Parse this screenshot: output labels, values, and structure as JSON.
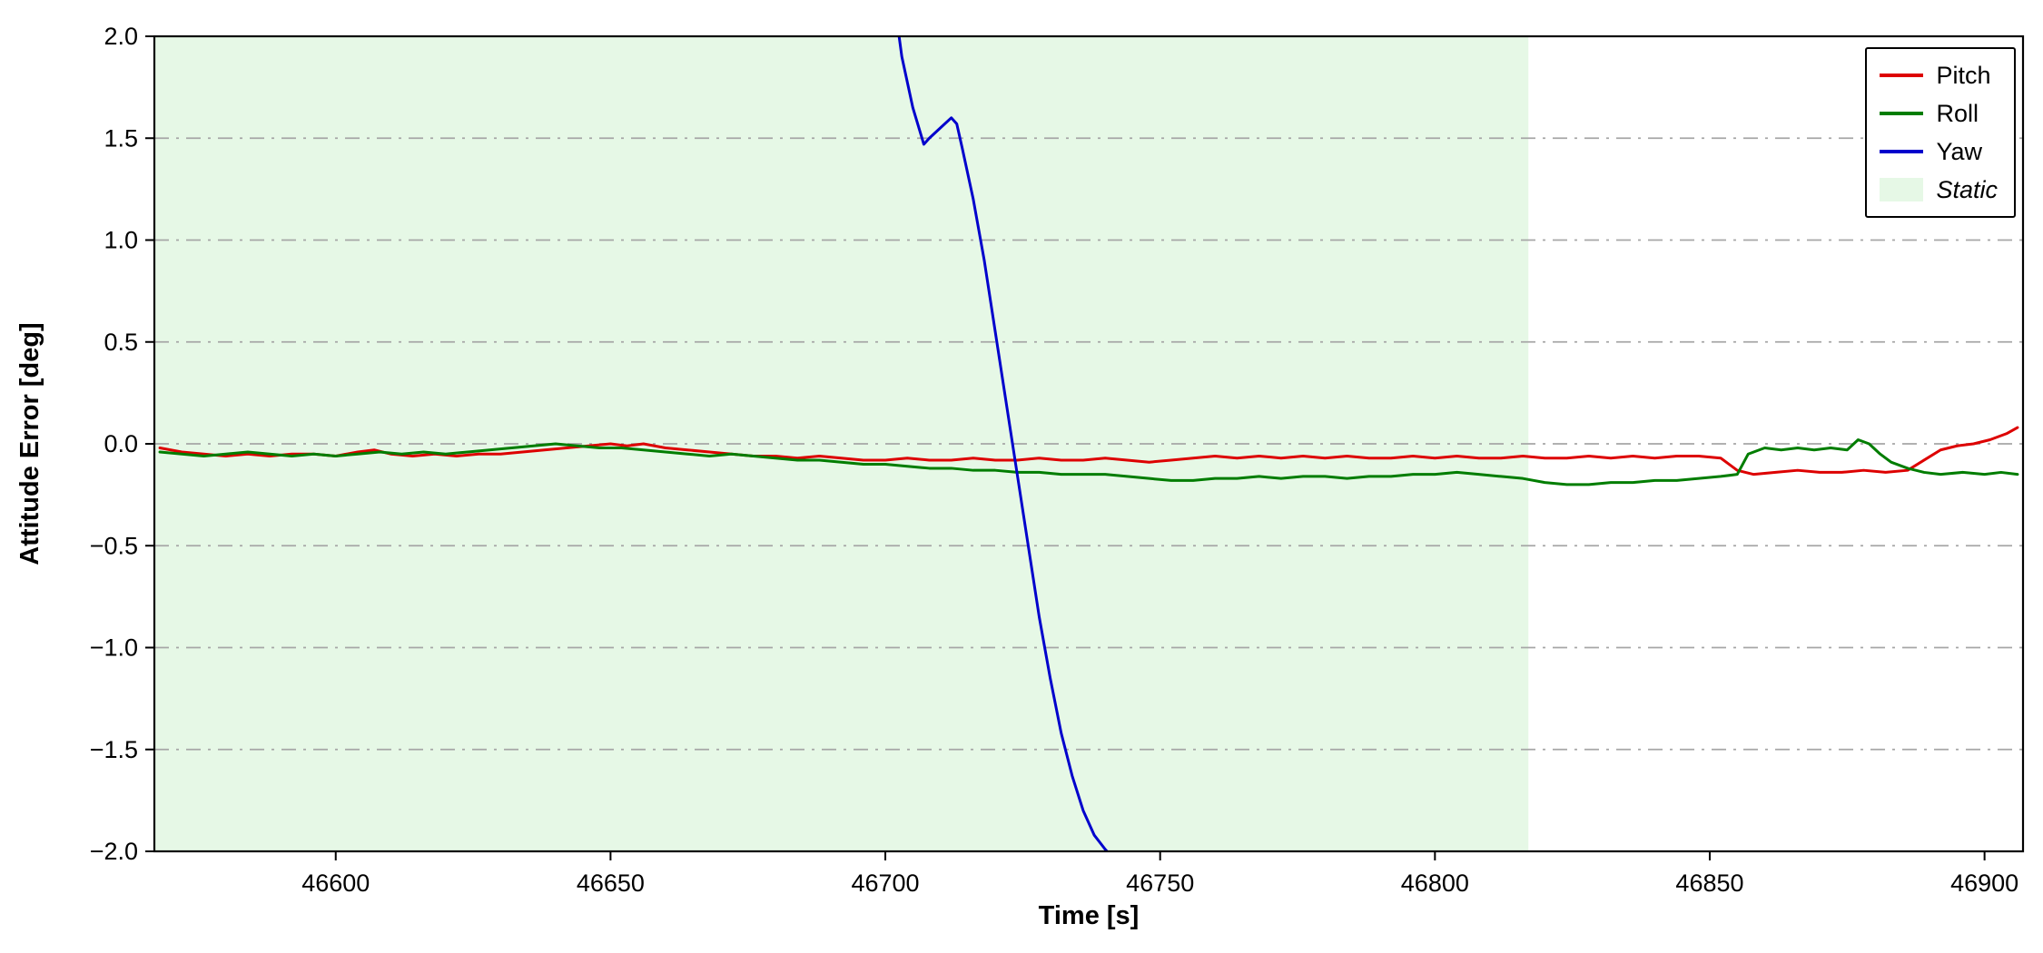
{
  "chart_data": {
    "type": "line",
    "title": "",
    "xlabel": "Time [s]",
    "ylabel": "Attitude Error [deg]",
    "xlim": [
      46567,
      46907
    ],
    "ylim": [
      -2.0,
      2.0
    ],
    "xticks": [
      46600,
      46650,
      46700,
      46750,
      46800,
      46850,
      46900
    ],
    "yticks": [
      -2.0,
      -1.5,
      -1.0,
      -0.5,
      0.0,
      0.5,
      1.0,
      1.5,
      2.0
    ],
    "grid": "horizontal dash-dot",
    "grid_color": "#a6a6a6",
    "static_region": {
      "label": "Static",
      "x_start": 46567,
      "x_end": 46817,
      "color": "#e6f8e6"
    },
    "legend": {
      "position": "upper right",
      "items": [
        {
          "label": "Pitch",
          "type": "line",
          "color": "#dd0000",
          "italic": false
        },
        {
          "label": "Roll",
          "type": "line",
          "color": "#007d00",
          "italic": false
        },
        {
          "label": "Yaw",
          "type": "line",
          "color": "#0000cc",
          "italic": false
        },
        {
          "label": "Static",
          "type": "patch",
          "color": "#e6f8e6",
          "italic": true
        }
      ]
    },
    "series": [
      {
        "name": "Pitch",
        "color": "#dd0000",
        "points": [
          [
            46568,
            -0.02
          ],
          [
            46572,
            -0.04
          ],
          [
            46576,
            -0.05
          ],
          [
            46580,
            -0.06
          ],
          [
            46584,
            -0.05
          ],
          [
            46588,
            -0.06
          ],
          [
            46592,
            -0.05
          ],
          [
            46596,
            -0.05
          ],
          [
            46600,
            -0.06
          ],
          [
            46604,
            -0.04
          ],
          [
            46607,
            -0.03
          ],
          [
            46610,
            -0.05
          ],
          [
            46614,
            -0.06
          ],
          [
            46618,
            -0.05
          ],
          [
            46622,
            -0.06
          ],
          [
            46626,
            -0.05
          ],
          [
            46630,
            -0.05
          ],
          [
            46634,
            -0.04
          ],
          [
            46638,
            -0.03
          ],
          [
            46642,
            -0.02
          ],
          [
            46646,
            -0.01
          ],
          [
            46650,
            0.0
          ],
          [
            46653,
            -0.01
          ],
          [
            46656,
            0.0
          ],
          [
            46660,
            -0.02
          ],
          [
            46664,
            -0.03
          ],
          [
            46668,
            -0.04
          ],
          [
            46672,
            -0.05
          ],
          [
            46676,
            -0.06
          ],
          [
            46680,
            -0.06
          ],
          [
            46684,
            -0.07
          ],
          [
            46688,
            -0.06
          ],
          [
            46692,
            -0.07
          ],
          [
            46696,
            -0.08
          ],
          [
            46700,
            -0.08
          ],
          [
            46704,
            -0.07
          ],
          [
            46708,
            -0.08
          ],
          [
            46712,
            -0.08
          ],
          [
            46716,
            -0.07
          ],
          [
            46720,
            -0.08
          ],
          [
            46724,
            -0.08
          ],
          [
            46728,
            -0.07
          ],
          [
            46732,
            -0.08
          ],
          [
            46736,
            -0.08
          ],
          [
            46740,
            -0.07
          ],
          [
            46744,
            -0.08
          ],
          [
            46748,
            -0.09
          ],
          [
            46752,
            -0.08
          ],
          [
            46756,
            -0.07
          ],
          [
            46760,
            -0.06
          ],
          [
            46764,
            -0.07
          ],
          [
            46768,
            -0.06
          ],
          [
            46772,
            -0.07
          ],
          [
            46776,
            -0.06
          ],
          [
            46780,
            -0.07
          ],
          [
            46784,
            -0.06
          ],
          [
            46788,
            -0.07
          ],
          [
            46792,
            -0.07
          ],
          [
            46796,
            -0.06
          ],
          [
            46800,
            -0.07
          ],
          [
            46804,
            -0.06
          ],
          [
            46808,
            -0.07
          ],
          [
            46812,
            -0.07
          ],
          [
            46816,
            -0.06
          ],
          [
            46820,
            -0.07
          ],
          [
            46824,
            -0.07
          ],
          [
            46828,
            -0.06
          ],
          [
            46832,
            -0.07
          ],
          [
            46836,
            -0.06
          ],
          [
            46840,
            -0.07
          ],
          [
            46844,
            -0.06
          ],
          [
            46848,
            -0.06
          ],
          [
            46852,
            -0.07
          ],
          [
            46855,
            -0.13
          ],
          [
            46858,
            -0.15
          ],
          [
            46862,
            -0.14
          ],
          [
            46866,
            -0.13
          ],
          [
            46870,
            -0.14
          ],
          [
            46874,
            -0.14
          ],
          [
            46878,
            -0.13
          ],
          [
            46882,
            -0.14
          ],
          [
            46886,
            -0.13
          ],
          [
            46889,
            -0.08
          ],
          [
            46892,
            -0.03
          ],
          [
            46895,
            -0.01
          ],
          [
            46898,
            0.0
          ],
          [
            46901,
            0.02
          ],
          [
            46904,
            0.05
          ],
          [
            46906,
            0.08
          ]
        ]
      },
      {
        "name": "Roll",
        "color": "#007d00",
        "points": [
          [
            46568,
            -0.04
          ],
          [
            46572,
            -0.05
          ],
          [
            46576,
            -0.06
          ],
          [
            46580,
            -0.05
          ],
          [
            46584,
            -0.04
          ],
          [
            46588,
            -0.05
          ],
          [
            46592,
            -0.06
          ],
          [
            46596,
            -0.05
          ],
          [
            46600,
            -0.06
          ],
          [
            46604,
            -0.05
          ],
          [
            46608,
            -0.04
          ],
          [
            46612,
            -0.05
          ],
          [
            46616,
            -0.04
          ],
          [
            46620,
            -0.05
          ],
          [
            46624,
            -0.04
          ],
          [
            46628,
            -0.03
          ],
          [
            46632,
            -0.02
          ],
          [
            46636,
            -0.01
          ],
          [
            46640,
            0.0
          ],
          [
            46644,
            -0.01
          ],
          [
            46648,
            -0.02
          ],
          [
            46652,
            -0.02
          ],
          [
            46656,
            -0.03
          ],
          [
            46660,
            -0.04
          ],
          [
            46664,
            -0.05
          ],
          [
            46668,
            -0.06
          ],
          [
            46672,
            -0.05
          ],
          [
            46676,
            -0.06
          ],
          [
            46680,
            -0.07
          ],
          [
            46684,
            -0.08
          ],
          [
            46688,
            -0.08
          ],
          [
            46692,
            -0.09
          ],
          [
            46696,
            -0.1
          ],
          [
            46700,
            -0.1
          ],
          [
            46704,
            -0.11
          ],
          [
            46708,
            -0.12
          ],
          [
            46712,
            -0.12
          ],
          [
            46716,
            -0.13
          ],
          [
            46720,
            -0.13
          ],
          [
            46724,
            -0.14
          ],
          [
            46728,
            -0.14
          ],
          [
            46732,
            -0.15
          ],
          [
            46736,
            -0.15
          ],
          [
            46740,
            -0.15
          ],
          [
            46744,
            -0.16
          ],
          [
            46748,
            -0.17
          ],
          [
            46752,
            -0.18
          ],
          [
            46756,
            -0.18
          ],
          [
            46760,
            -0.17
          ],
          [
            46764,
            -0.17
          ],
          [
            46768,
            -0.16
          ],
          [
            46772,
            -0.17
          ],
          [
            46776,
            -0.16
          ],
          [
            46780,
            -0.16
          ],
          [
            46784,
            -0.17
          ],
          [
            46788,
            -0.16
          ],
          [
            46792,
            -0.16
          ],
          [
            46796,
            -0.15
          ],
          [
            46800,
            -0.15
          ],
          [
            46804,
            -0.14
          ],
          [
            46808,
            -0.15
          ],
          [
            46812,
            -0.16
          ],
          [
            46816,
            -0.17
          ],
          [
            46820,
            -0.19
          ],
          [
            46824,
            -0.2
          ],
          [
            46828,
            -0.2
          ],
          [
            46832,
            -0.19
          ],
          [
            46836,
            -0.19
          ],
          [
            46840,
            -0.18
          ],
          [
            46844,
            -0.18
          ],
          [
            46848,
            -0.17
          ],
          [
            46852,
            -0.16
          ],
          [
            46855,
            -0.15
          ],
          [
            46857,
            -0.05
          ],
          [
            46860,
            -0.02
          ],
          [
            46863,
            -0.03
          ],
          [
            46866,
            -0.02
          ],
          [
            46869,
            -0.03
          ],
          [
            46872,
            -0.02
          ],
          [
            46875,
            -0.03
          ],
          [
            46877,
            0.02
          ],
          [
            46879,
            0.0
          ],
          [
            46881,
            -0.05
          ],
          [
            46883,
            -0.09
          ],
          [
            46886,
            -0.12
          ],
          [
            46889,
            -0.14
          ],
          [
            46892,
            -0.15
          ],
          [
            46896,
            -0.14
          ],
          [
            46900,
            -0.15
          ],
          [
            46903,
            -0.14
          ],
          [
            46906,
            -0.15
          ]
        ]
      },
      {
        "name": "Yaw",
        "color": "#0000cc",
        "points": [
          [
            46702,
            2.1
          ],
          [
            46703,
            1.9
          ],
          [
            46705,
            1.65
          ],
          [
            46707,
            1.47
          ],
          [
            46708,
            1.5
          ],
          [
            46710,
            1.55
          ],
          [
            46712,
            1.6
          ],
          [
            46713,
            1.57
          ],
          [
            46714,
            1.45
          ],
          [
            46716,
            1.2
          ],
          [
            46718,
            0.9
          ],
          [
            46720,
            0.55
          ],
          [
            46722,
            0.2
          ],
          [
            46724,
            -0.15
          ],
          [
            46726,
            -0.5
          ],
          [
            46728,
            -0.85
          ],
          [
            46730,
            -1.15
          ],
          [
            46732,
            -1.42
          ],
          [
            46734,
            -1.63
          ],
          [
            46736,
            -1.8
          ],
          [
            46738,
            -1.92
          ],
          [
            46740,
            -1.99
          ],
          [
            46742,
            -2.05
          ]
        ]
      }
    ]
  }
}
